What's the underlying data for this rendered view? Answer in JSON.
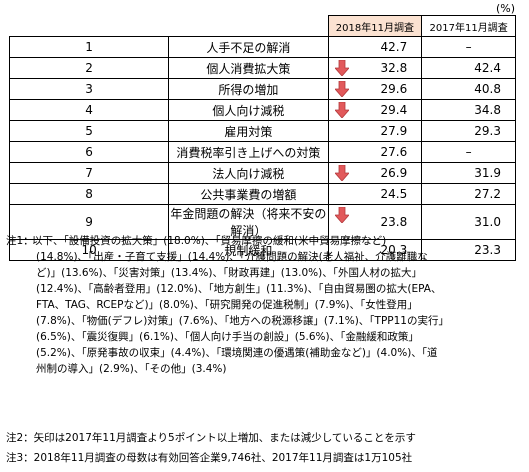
{
  "unit": "(%)",
  "table": {
    "headers": {
      "col2018": "2018年11月調査",
      "col2017": "2017年11月調査"
    },
    "rows": [
      {
        "rank": "1",
        "item": "人手不足の解消",
        "v2018": "42.7",
        "v2017": "–",
        "down": false
      },
      {
        "rank": "2",
        "item": "個人消費拡大策",
        "v2018": "32.8",
        "v2017": "42.4",
        "down": true
      },
      {
        "rank": "3",
        "item": "所得の増加",
        "v2018": "29.6",
        "v2017": "40.8",
        "down": true
      },
      {
        "rank": "4",
        "item": "個人向け減税",
        "v2018": "29.4",
        "v2017": "34.8",
        "down": true
      },
      {
        "rank": "5",
        "item": "雇用対策",
        "v2018": "27.9",
        "v2017": "29.3",
        "down": false
      },
      {
        "rank": "6",
        "item": "消費税率引き上げへの対策",
        "v2018": "27.6",
        "v2017": "–",
        "down": false
      },
      {
        "rank": "7",
        "item": "法人向け減税",
        "v2018": "26.9",
        "v2017": "31.9",
        "down": true
      },
      {
        "rank": "8",
        "item": "公共事業費の増額",
        "v2018": "24.5",
        "v2017": "27.2",
        "down": false
      },
      {
        "rank": "9",
        "item": "年金問題の解決（将来不安の解消）",
        "v2018": "23.8",
        "v2017": "31.0",
        "down": true
      },
      {
        "rank": "10",
        "item": "規制緩和",
        "v2018": "20.3",
        "v2017": "23.3",
        "down": false
      }
    ]
  },
  "notes": {
    "note1_label": "注1：",
    "note1_lines": [
      "以下、「設備投資の拡大策」(18.0%)、「貿易摩擦の緩和(米中貿易摩擦など)",
      "(14.8%)、「出産・子育て支援」(14.4%)、「介護問題の解決(老人福祉、介護離職な",
      "ど)」(13.6%)、「災害対策」(13.4%)、「財政再建」(13.0%)、「外国人材の拡大」",
      "(12.4%)、「高齢者登用」(12.0%)、「地方創生」(11.3%)、「自由貿易圏の拡大(EPA、",
      "FTA、TAG、RCEPなど)」(8.0%)、「研究開発の促進税制」(7.9%)、「女性登用」",
      "(7.8%)、「物価(デフレ)対策」(7.6%)、「地方への税源移譲」(7.1%)、「TPP11の実行」",
      "(6.5%)、「震災復興」(6.1%)、「個人向け手当の創設」(5.6%)、「金融緩和政策」",
      "(5.2%)、「原発事故の収束」(4.4%)、「環境関連の優遇策(補助金など)」(4.0%)、「道",
      "州制の導入」(2.9%)、「その他」(3.4%)"
    ],
    "note2": "注2：矢印は2017年11月調査より5ポイント以上増加、または減少していることを示す",
    "note3": "注3：2018年11月調査の母数は有効回答企業9,746社、2017年11月調査は1万105社"
  },
  "colors": {
    "arrow": "#e2595b",
    "header2018_bg": "#fbe2d1"
  },
  "icons": {
    "down_marker": "down-arrow-icon"
  }
}
